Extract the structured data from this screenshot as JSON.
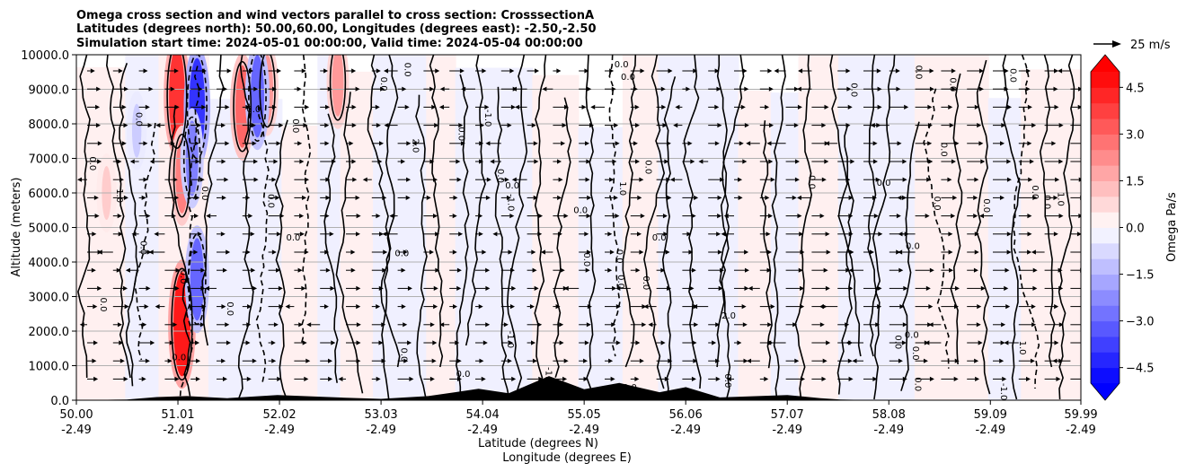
{
  "chart_data": {
    "type": "heatmap",
    "title_lines": [
      "Omega cross section and wind vectors parallel to cross section: CrosssectionA",
      "Latitudes (degrees north): 50.00,60.00, Longitudes (degrees east): -2.50,-2.50",
      "Simulation start time: 2024-05-01 00:00:00, Valid time: 2024-05-04 00:00:00"
    ],
    "ylabel": "Altitude (meters)",
    "xlabel_lines": [
      "Latitude (degrees N)",
      "Longitude (degrees E)"
    ],
    "ylim": [
      0,
      10000
    ],
    "y_ticks": [
      "0.0",
      "1000.0",
      "2000.0",
      "3000.0",
      "4000.0",
      "5000.0",
      "6000.0",
      "7000.0",
      "8000.0",
      "9000.0",
      "10000.0"
    ],
    "y_tick_values": [
      0,
      1000,
      2000,
      3000,
      4000,
      5000,
      6000,
      7000,
      8000,
      9000,
      10000
    ],
    "xlim": [
      50.0,
      59.99
    ],
    "x_ticks": [
      {
        "lat": "50.00",
        "lon": "-2.49",
        "value": 50.0
      },
      {
        "lat": "51.01",
        "lon": "-2.49",
        "value": 51.01
      },
      {
        "lat": "52.02",
        "lon": "-2.49",
        "value": 52.02
      },
      {
        "lat": "53.03",
        "lon": "-2.49",
        "value": 53.03
      },
      {
        "lat": "54.04",
        "lon": "-2.49",
        "value": 54.04
      },
      {
        "lat": "55.05",
        "lon": "-2.49",
        "value": 55.05
      },
      {
        "lat": "56.06",
        "lon": "-2.49",
        "value": 56.06
      },
      {
        "lat": "57.07",
        "lon": "-2.49",
        "value": 57.07
      },
      {
        "lat": "58.08",
        "lon": "-2.49",
        "value": 58.08
      },
      {
        "lat": "59.09",
        "lon": "-2.49",
        "value": 59.09
      },
      {
        "lat": "59.99",
        "lon": "-2.49",
        "value": 59.99
      }
    ],
    "grid": true,
    "colorbar": {
      "label": "Omega Pa/s",
      "range": [
        -5,
        5
      ],
      "extend": "both",
      "ticks": [
        "4.5",
        "3.0",
        "1.5",
        "0.0",
        "−1.5",
        "−3.0",
        "−4.5"
      ],
      "tick_values": [
        4.5,
        3.0,
        1.5,
        0.0,
        -1.5,
        -3.0,
        -4.5
      ],
      "levels": 20,
      "colormap": "bwr",
      "colors": {
        "negative": "#0000ff",
        "zero": "#ffffff",
        "positive": "#ff0000"
      }
    },
    "quiver_key": {
      "label": "25 m/s",
      "speed": 25
    },
    "contour_labels": [
      "0.0",
      "-1.0",
      "1.0",
      "2.0",
      "-2.0"
    ],
    "omega_features": [
      {
        "lat": 51.0,
        "alt": 8800,
        "value": 4.0
      },
      {
        "lat": 51.05,
        "alt": 6500,
        "value": 2.5
      },
      {
        "lat": 51.05,
        "alt": 2200,
        "value": 4.5
      },
      {
        "lat": 51.2,
        "alt": 8500,
        "value": -4.0
      },
      {
        "lat": 51.15,
        "alt": 7000,
        "value": -2.5
      },
      {
        "lat": 51.2,
        "alt": 3500,
        "value": -3.0
      },
      {
        "lat": 51.65,
        "alt": 8500,
        "value": 3.0
      },
      {
        "lat": 51.9,
        "alt": 9000,
        "value": 2.0
      },
      {
        "lat": 51.8,
        "alt": 8800,
        "value": -3.0
      },
      {
        "lat": 52.6,
        "alt": 9200,
        "value": 2.0
      },
      {
        "lat": 50.3,
        "alt": 6000,
        "value": 1.0
      },
      {
        "lat": 50.6,
        "alt": 7800,
        "value": -1.0
      }
    ],
    "terrain": [
      {
        "lat": 50.0,
        "alt": 0
      },
      {
        "lat": 50.5,
        "alt": 20
      },
      {
        "lat": 50.8,
        "alt": 90
      },
      {
        "lat": 51.1,
        "alt": 120
      },
      {
        "lat": 51.5,
        "alt": 60
      },
      {
        "lat": 52.0,
        "alt": 150
      },
      {
        "lat": 52.6,
        "alt": 80
      },
      {
        "lat": 53.03,
        "alt": 40
      },
      {
        "lat": 53.5,
        "alt": 120
      },
      {
        "lat": 54.0,
        "alt": 330
      },
      {
        "lat": 54.3,
        "alt": 200
      },
      {
        "lat": 54.7,
        "alt": 700
      },
      {
        "lat": 55.05,
        "alt": 320
      },
      {
        "lat": 55.4,
        "alt": 500
      },
      {
        "lat": 55.8,
        "alt": 230
      },
      {
        "lat": 56.06,
        "alt": 380
      },
      {
        "lat": 56.4,
        "alt": 80
      },
      {
        "lat": 57.07,
        "alt": 150
      },
      {
        "lat": 57.4,
        "alt": 60
      },
      {
        "lat": 57.6,
        "alt": 20
      },
      {
        "lat": 58.0,
        "alt": 0
      },
      {
        "lat": 59.99,
        "alt": 0
      }
    ]
  }
}
